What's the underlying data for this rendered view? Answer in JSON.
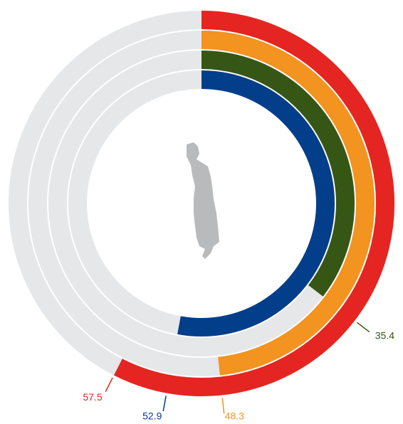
{
  "chart_data": {
    "type": "radial_bar",
    "values": [
      57.5,
      48.3,
      35.4,
      52.9
    ],
    "colors": [
      "#e52521",
      "#f39320",
      "#365616",
      "#023e8a"
    ],
    "track_color": "#e6e7e9",
    "ylim": [
      0,
      100
    ]
  }
}
